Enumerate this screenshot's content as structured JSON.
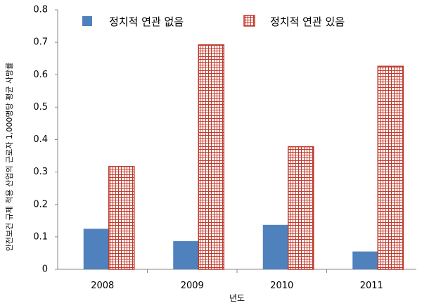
{
  "chart_data": {
    "type": "bar",
    "categories": [
      "2008",
      "2009",
      "2010",
      "2011"
    ],
    "series": [
      {
        "name": "정치적 연관 없음",
        "values": [
          0.125,
          0.087,
          0.137,
          0.055
        ],
        "color": "#4f81bd",
        "pattern": "solid"
      },
      {
        "name": "정치적 연관 있음",
        "values": [
          0.317,
          0.692,
          0.378,
          0.626
        ],
        "color": "#c0392b",
        "pattern": "grid"
      }
    ],
    "xlabel": "년도",
    "ylabel": "안전보건 규제 적용 산업의 근로자 1,000명당 평균 사망률",
    "ylim": [
      0,
      0.8
    ],
    "yticks": [
      "0",
      "0.1",
      "0.2",
      "0.3",
      "0.4",
      "0.5",
      "0.6",
      "0.7",
      "0.8"
    ],
    "legend_position": "top",
    "grid": false
  }
}
